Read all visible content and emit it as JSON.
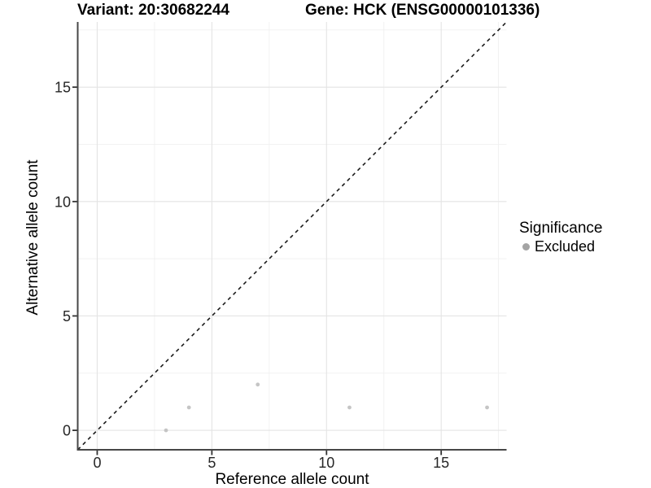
{
  "chart_data": {
    "type": "scatter",
    "titles": {
      "variant": "Variant: 20:30682244",
      "gene": "Gene: HCK (ENSG00000101336)"
    },
    "xlabel": "Reference allele count",
    "ylabel": "Alternative allele count",
    "xlim": [
      -0.85,
      17.85
    ],
    "ylim": [
      -0.85,
      17.85
    ],
    "x_major_ticks": [
      0,
      5,
      10,
      15
    ],
    "y_major_ticks": [
      0,
      5,
      10,
      15
    ],
    "x_minor_ticks": [
      2.5,
      7.5,
      12.5,
      17.5
    ],
    "y_minor_ticks": [
      2.5,
      7.5,
      12.5,
      17.5
    ],
    "grid": "major+minor",
    "series": [
      {
        "name": "Excluded",
        "points": [
          {
            "x": 3,
            "y": 0
          },
          {
            "x": 4,
            "y": 1
          },
          {
            "x": 7,
            "y": 2
          },
          {
            "x": 11,
            "y": 1
          },
          {
            "x": 17,
            "y": 1
          }
        ]
      }
    ],
    "reference_line": {
      "kind": "identity",
      "slope": 1,
      "intercept": 0,
      "style": "dashed"
    },
    "legend": {
      "title": "Significance",
      "position": "right",
      "items": [
        {
          "label": "Excluded"
        }
      ]
    }
  },
  "colors": {
    "point": "#c5c5c5",
    "legend_key": "#a4a4a4",
    "grid_major": "#e4e4e4",
    "grid_minor": "#f0f0f0",
    "axis_line": "#474747",
    "tick_mark": "#333333",
    "tick_label": "#262626",
    "reference_line": "#1b1b1b",
    "title_text": "#000000"
  }
}
